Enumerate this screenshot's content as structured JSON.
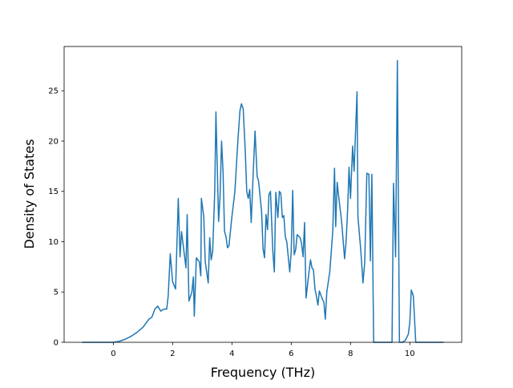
{
  "chart_data": {
    "type": "line",
    "x_label": "Frequency (THz)",
    "y_label": "Density of States",
    "x": [
      -1.05,
      0,
      0.2,
      0.4,
      0.6,
      0.8,
      1.0,
      1.2,
      1.3,
      1.4,
      1.5,
      1.6,
      1.7,
      1.8,
      1.85,
      1.92,
      2.0,
      2.1,
      2.19,
      2.25,
      2.3,
      2.45,
      2.49,
      2.55,
      2.65,
      2.7,
      2.73,
      2.8,
      2.9,
      2.95,
      2.97,
      3.05,
      3.1,
      3.2,
      3.25,
      3.3,
      3.35,
      3.42,
      3.46,
      3.55,
      3.6,
      3.65,
      3.7,
      3.75,
      3.8,
      3.85,
      3.9,
      4.0,
      4.1,
      4.2,
      4.27,
      4.32,
      4.38,
      4.45,
      4.5,
      4.55,
      4.6,
      4.65,
      4.72,
      4.78,
      4.85,
      4.9,
      5.0,
      5.05,
      5.1,
      5.15,
      5.2,
      5.25,
      5.3,
      5.38,
      5.43,
      5.48,
      5.55,
      5.6,
      5.65,
      5.7,
      5.75,
      5.8,
      5.85,
      5.95,
      6.0,
      6.05,
      6.1,
      6.15,
      6.2,
      6.3,
      6.35,
      6.4,
      6.45,
      6.5,
      6.6,
      6.65,
      6.7,
      6.75,
      6.8,
      6.85,
      6.9,
      6.95,
      7.05,
      7.1,
      7.15,
      7.2,
      7.3,
      7.4,
      7.46,
      7.5,
      7.55,
      7.6,
      7.7,
      7.8,
      7.85,
      7.9,
      7.95,
      8.0,
      8.07,
      8.12,
      8.22,
      8.25,
      8.35,
      8.42,
      8.48,
      8.55,
      8.62,
      8.67,
      8.72,
      8.78,
      9.4,
      9.45,
      9.52,
      9.58,
      9.65,
      9.75,
      9.85,
      9.95,
      10.0,
      10.05,
      10.12,
      10.2,
      11.14
    ],
    "series": [
      {
        "color": "#1f77b4",
        "values": [
          0,
          0,
          0.1,
          0.3,
          0.6,
          1.0,
          1.5,
          2.3,
          2.5,
          3.3,
          3.6,
          3.1,
          3.3,
          3.3,
          4.6,
          8.8,
          6.0,
          5.3,
          14.3,
          8.5,
          11,
          7.4,
          12.7,
          4.1,
          5,
          6.5,
          2.6,
          8.4,
          8,
          6.6,
          14.3,
          12.5,
          8,
          5.9,
          10.4,
          8.2,
          9,
          15,
          22.9,
          12,
          14.5,
          20,
          17,
          11,
          10.5,
          9.4,
          9.6,
          12.5,
          15,
          20,
          23,
          23.7,
          23.2,
          19,
          15,
          14.3,
          15.2,
          11.9,
          17,
          21,
          16.5,
          16,
          13,
          9.3,
          8.4,
          12.7,
          11.2,
          14.7,
          15,
          9,
          7,
          14.9,
          12.4,
          15,
          14.8,
          12.4,
          12.6,
          10.5,
          10,
          7,
          9,
          15.1,
          8.7,
          9.2,
          10.7,
          10.4,
          9.8,
          8.5,
          11.9,
          4.4,
          7,
          8.2,
          7.4,
          7.2,
          5.3,
          4.6,
          3.7,
          5.1,
          4.3,
          4,
          2.3,
          5,
          7,
          11,
          17.3,
          11.5,
          15.9,
          14.5,
          12,
          8.3,
          10,
          13,
          17.4,
          14.3,
          19.5,
          17,
          24.9,
          12.5,
          9,
          5.9,
          8,
          16.8,
          16.7,
          8.1,
          16.7,
          0,
          0,
          15.8,
          8.5,
          28,
          0,
          0,
          0.2,
          0.8,
          2,
          5.2,
          4.6,
          0,
          0
        ]
      }
    ],
    "xlim": [
      -1.66,
      11.75
    ],
    "xticks": [
      0,
      2,
      4,
      6,
      8,
      10
    ],
    "ylim": [
      0,
      29.4
    ],
    "yticks": [
      0,
      5,
      10,
      15,
      20,
      25
    ]
  }
}
